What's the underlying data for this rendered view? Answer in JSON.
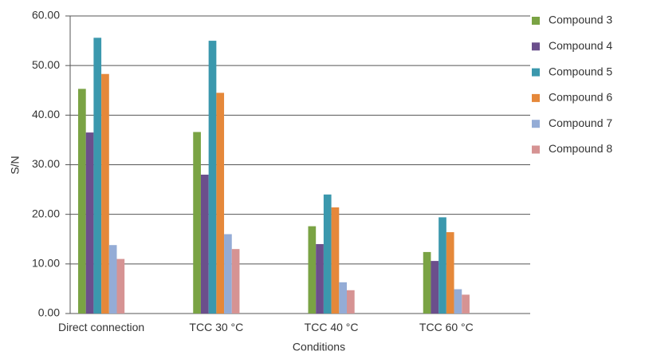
{
  "chart_data": {
    "type": "bar",
    "x_label": "Conditions",
    "y_label": "S/N",
    "categories": [
      "Direct connection",
      "TCC 30 °C",
      "TCC 40 °C",
      "TCC 60 °C"
    ],
    "series": [
      {
        "name": "Compound 3",
        "color": "#7aa344",
        "values": [
          45.3,
          36.6,
          17.6,
          12.4
        ]
      },
      {
        "name": "Compound 4",
        "color": "#6b4f8c",
        "values": [
          36.5,
          28.0,
          14.0,
          10.6
        ]
      },
      {
        "name": "Compound 5",
        "color": "#3b98ad",
        "values": [
          55.6,
          55.0,
          24.0,
          19.4
        ]
      },
      {
        "name": "Compound 6",
        "color": "#e5883a",
        "values": [
          48.3,
          44.5,
          21.4,
          16.4
        ]
      },
      {
        "name": "Compound 7",
        "color": "#94acd6",
        "values": [
          13.8,
          16.0,
          6.3,
          4.9
        ]
      },
      {
        "name": "Compound 8",
        "color": "#d69393",
        "values": [
          11.0,
          13.0,
          4.7,
          3.8
        ]
      }
    ],
    "ylim": [
      0,
      60
    ],
    "yticks": [
      {
        "value": 0,
        "label": "0.00"
      },
      {
        "value": 10,
        "label": "10.00"
      },
      {
        "value": 20,
        "label": "20.00"
      },
      {
        "value": 30,
        "label": "30.00"
      },
      {
        "value": 40,
        "label": "40.00"
      },
      {
        "value": 50,
        "label": "50.00"
      },
      {
        "value": 60,
        "label": "60.00"
      }
    ],
    "grid": true,
    "legend": "right"
  }
}
